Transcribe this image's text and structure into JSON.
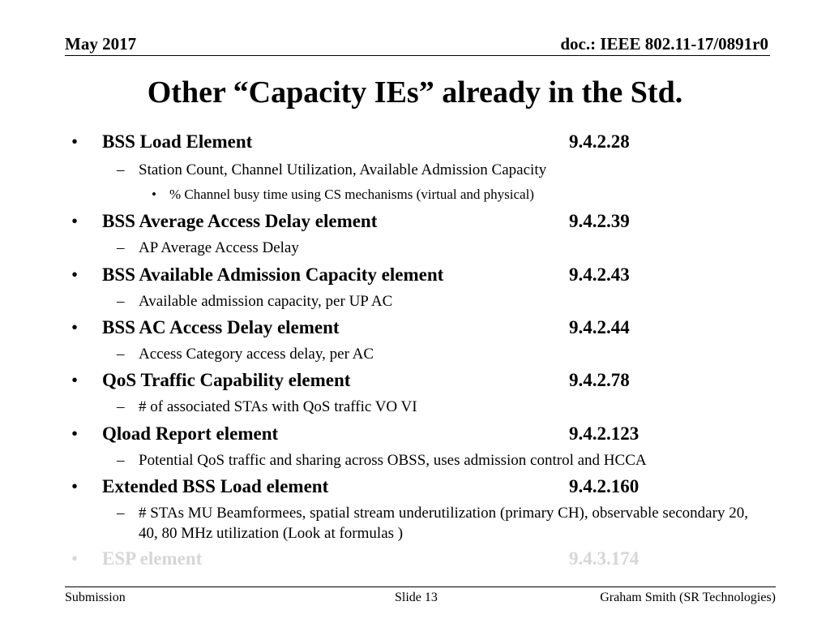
{
  "header": {
    "date": "May 2017",
    "doc": "doc.: IEEE 802.11-17/0891r0"
  },
  "title": "Other “Capacity IEs” already in the Std.",
  "items": [
    {
      "bullet": "•",
      "name": "BSS Load Element",
      "ref": "9.4.2.28",
      "sub": [
        {
          "dash": "–",
          "text": "Station Count, Channel Utilization, Available Admission Capacity"
        }
      ],
      "subsub": [
        {
          "bullet": "•",
          "text": "% Channel busy time using CS mechanisms (virtual and physical)"
        }
      ]
    },
    {
      "bullet": "•",
      "name": "BSS Average Access Delay element",
      "ref": "9.4.2.39",
      "sub": [
        {
          "dash": "–",
          "text": "AP Average Access Delay"
        }
      ]
    },
    {
      "bullet": "•",
      "name": "BSS Available Admission Capacity element",
      "ref": "9.4.2.43",
      "sub": [
        {
          "dash": "–",
          "text": "Available admission capacity, per UP  AC"
        }
      ]
    },
    {
      "bullet": "•",
      "name": "BSS AC Access Delay element",
      "ref": "9.4.2.44",
      "sub": [
        {
          "dash": "–",
          "text": "Access Category access delay, per AC"
        }
      ]
    },
    {
      "bullet": "•",
      "name": "QoS Traffic Capability element",
      "ref": "9.4.2.78",
      "sub": [
        {
          "dash": "–",
          "text": "# of associated STAs with QoS traffic VO VI"
        }
      ]
    },
    {
      "bullet": "•",
      "name": "Qload Report element",
      "ref": "9.4.2.123",
      "sub": [
        {
          "dash": "–",
          "text": "Potential QoS traffic and sharing across OBSS, uses admission control and HCCA"
        }
      ]
    },
    {
      "bullet": "•",
      "name": "Extended BSS Load element",
      "ref": "9.4.2.160",
      "sub": [
        {
          "dash": "–",
          "text": "# STAs MU Beamformees, spatial stream underutilization (primary CH), observable secondary 20,",
          "text2": "40, 80 MHz utilization (Look at formulas )"
        }
      ]
    },
    {
      "bullet": "•",
      "name": "ESP element",
      "ref": "9.4.3.174",
      "faded": true
    }
  ],
  "footer": {
    "left": "Submission",
    "center": "Slide 13",
    "right": "Graham Smith (SR Technologies)"
  },
  "colors": {
    "faded_text": "#d6d6d6",
    "text": "#000000"
  }
}
